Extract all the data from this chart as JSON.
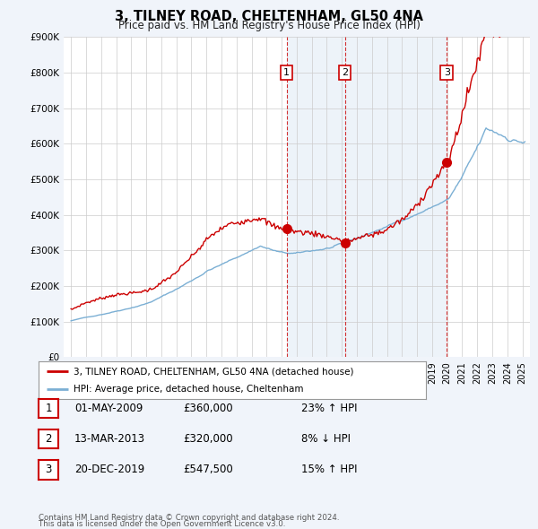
{
  "title": "3, TILNEY ROAD, CHELTENHAM, GL50 4NA",
  "subtitle": "Price paid vs. HM Land Registry's House Price Index (HPI)",
  "legend_line1": "3, TILNEY ROAD, CHELTENHAM, GL50 4NA (detached house)",
  "legend_line2": "HPI: Average price, detached house, Cheltenham",
  "sale_color": "#cc0000",
  "hpi_color": "#7bafd4",
  "ylim": [
    0,
    900000
  ],
  "yticks": [
    0,
    100000,
    200000,
    300000,
    400000,
    500000,
    600000,
    700000,
    800000,
    900000
  ],
  "ytick_labels": [
    "£0",
    "£100K",
    "£200K",
    "£300K",
    "£400K",
    "£500K",
    "£600K",
    "£700K",
    "£800K",
    "£900K"
  ],
  "sale_points": [
    {
      "label": "1",
      "date_num": 2009.33,
      "price": 360000
    },
    {
      "label": "2",
      "date_num": 2013.2,
      "price": 320000
    },
    {
      "label": "3",
      "date_num": 2019.97,
      "price": 547500
    }
  ],
  "sale_rows": [
    {
      "num": "1",
      "date": "01-MAY-2009",
      "price": "£360,000",
      "pct": "23% ↑ HPI"
    },
    {
      "num": "2",
      "date": "13-MAR-2013",
      "price": "£320,000",
      "pct": "8% ↓ HPI"
    },
    {
      "num": "3",
      "date": "20-DEC-2019",
      "price": "£547,500",
      "pct": "15% ↑ HPI"
    }
  ],
  "footnote1": "Contains HM Land Registry data © Crown copyright and database right 2024.",
  "footnote2": "This data is licensed under the Open Government Licence v3.0.",
  "background_color": "#f0f4fa",
  "plot_bg": "white",
  "grid_color": "#cccccc",
  "shade_color": "#dde8f5"
}
